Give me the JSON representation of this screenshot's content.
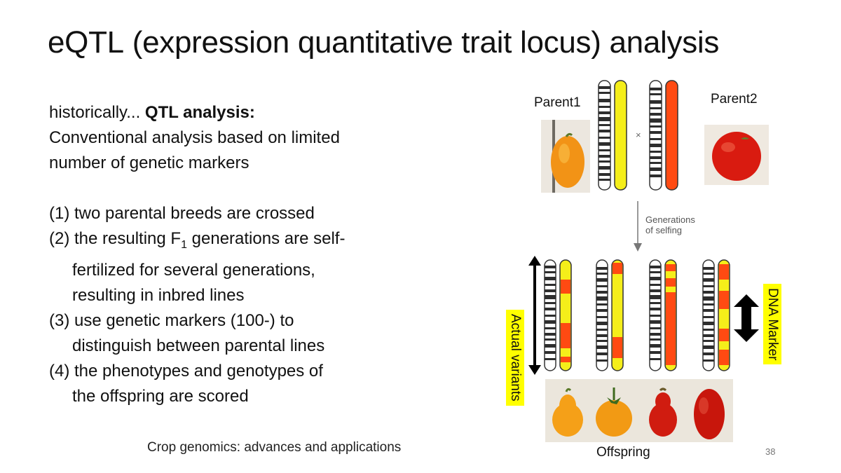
{
  "slide": {
    "title_prefix": "eQTL",
    "title_paren": "(expression quantitative trait locus)",
    "title_suffix": "analysis",
    "intro_normal": "historically... ",
    "intro_bold": "QTL analysis:",
    "intro_line2": "Conventional analysis based on limited",
    "intro_line3": "number of genetic markers",
    "step1": "(1) two parental breeds are crossed",
    "step2_a": "(2) the resulting F",
    "step2_sub": "1",
    "step2_b": " generations are self-",
    "step2_line2": "fertilized for several generations,",
    "step2_line3": "resulting in inbred lines",
    "step3_line1": "(3) use genetic markers (100-) to",
    "step3_line2": "distinguish between parental lines",
    "step4_line1": "(4) the phenotypes and genotypes of",
    "step4_line2": "the offspring are scored",
    "citation": "Crop genomics: advances and applications",
    "slide_number": "38"
  },
  "figure": {
    "parent1_label": "Parent1",
    "parent2_label": "Parent2",
    "cross_symbol": "×",
    "generations_line1": "Generations",
    "generations_line2": "of selfing",
    "actual_variants_label": "Actual variants",
    "dna_marker_label": "DNA Marker",
    "offspring_label": "Offspring",
    "colors": {
      "parent1_yellow": "#f5ee1a",
      "parent2_orange": "#ff4a12",
      "highlight_yellow": "#ffff00",
      "tomato_orange": "#f59a12",
      "tomato_red": "#d8180e"
    }
  }
}
